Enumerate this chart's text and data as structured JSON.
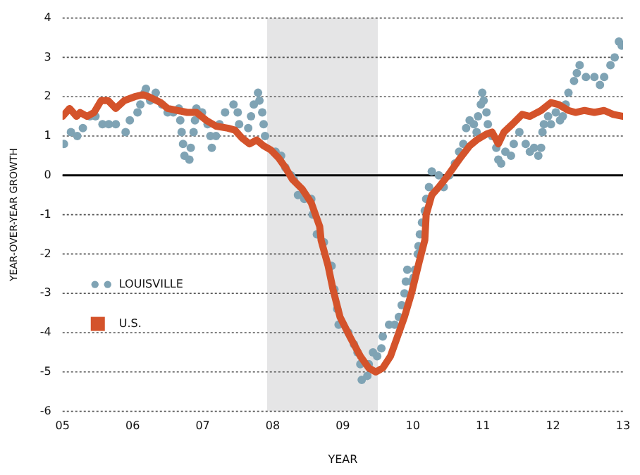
{
  "chart_data": {
    "type": "scatter",
    "xlabel": "YEAR",
    "ylabel": "YEAR-OVER-YEAR GROWTH",
    "xlim": [
      2005,
      2013
    ],
    "xticks": [
      {
        "value": 2005,
        "label": "05"
      },
      {
        "value": 2006,
        "label": "06"
      },
      {
        "value": 2007,
        "label": "07"
      },
      {
        "value": 2008,
        "label": "08"
      },
      {
        "value": 2009,
        "label": "09"
      },
      {
        "value": 2010,
        "label": "10"
      },
      {
        "value": 2011,
        "label": "11"
      },
      {
        "value": 2012,
        "label": "12"
      },
      {
        "value": 2013,
        "label": "13"
      }
    ],
    "ylim": [
      -6,
      4
    ],
    "yticks": [
      -6,
      -5,
      -4,
      -3,
      -2,
      -1,
      0,
      1,
      2,
      3,
      4
    ],
    "grid": "y",
    "legend": "bottom left",
    "bands": [
      {
        "axis": "x",
        "from": 2007.92,
        "to": 2009.5,
        "color": "#e5e5e6"
      }
    ],
    "ref_lines": [
      {
        "axis": "y",
        "value": 0,
        "color": "#000000"
      }
    ],
    "series": [
      {
        "name": "LOUISVILLE",
        "marker": "circle",
        "color": "#7fa3b4",
        "x": [
          2005.02,
          2005.12,
          2005.21,
          2005.29,
          2005.39,
          2005.47,
          2005.57,
          2005.66,
          2005.76,
          2005.9,
          2005.96,
          2006.07,
          2006.11,
          2006.17,
          2006.19,
          2006.25,
          2006.33,
          2006.42,
          2006.5,
          2006.58,
          2006.66,
          2006.68,
          2006.7,
          2006.72,
          2006.74,
          2006.81,
          2006.83,
          2006.87,
          2006.89,
          2006.91,
          2006.99,
          2007.07,
          2007.11,
          2007.13,
          2007.19,
          2007.24,
          2007.32,
          2007.44,
          2007.5,
          2007.52,
          2007.65,
          2007.69,
          2007.73,
          2007.79,
          2007.81,
          2007.85,
          2007.87,
          2007.89,
          2008.04,
          2008.12,
          2008.18,
          2008.26,
          2008.3,
          2008.36,
          2008.45,
          2008.55,
          2008.57,
          2008.63,
          2008.73,
          2008.84,
          2008.88,
          2008.92,
          2008.94,
          2009.08,
          2009.16,
          2009.21,
          2009.25,
          2009.27,
          2009.35,
          2009.37,
          2009.43,
          2009.49,
          2009.55,
          2009.57,
          2009.66,
          2009.74,
          2009.8,
          2009.84,
          2009.88,
          2009.9,
          2009.92,
          2009.98,
          2010.01,
          2010.03,
          2010.07,
          2010.08,
          2010.1,
          2010.13,
          2010.17,
          2010.19,
          2010.23,
          2010.27,
          2010.37,
          2010.44,
          2010.52,
          2010.6,
          2010.66,
          2010.72,
          2010.76,
          2010.81,
          2010.87,
          2010.91,
          2010.93,
          2010.97,
          2010.99,
          2011.01,
          2011.05,
          2011.07,
          2011.13,
          2011.19,
          2011.22,
          2011.26,
          2011.32,
          2011.4,
          2011.44,
          2011.52,
          2011.61,
          2011.67,
          2011.73,
          2011.79,
          2011.83,
          2011.85,
          2011.87,
          2011.93,
          2011.97,
          2012.04,
          2012.1,
          2012.14,
          2012.18,
          2012.22,
          2012.3,
          2012.34,
          2012.38,
          2012.47,
          2012.59,
          2012.67,
          2012.73,
          2012.82,
          2012.88,
          2012.94,
          2012.98
        ],
        "values": [
          0.8,
          1.1,
          1.0,
          1.2,
          1.5,
          1.5,
          1.3,
          1.3,
          1.3,
          1.1,
          1.4,
          1.6,
          1.8,
          2.1,
          2.2,
          1.9,
          2.1,
          1.8,
          1.6,
          1.6,
          1.7,
          1.4,
          1.1,
          0.8,
          0.5,
          0.4,
          0.7,
          1.1,
          1.4,
          1.7,
          1.6,
          1.3,
          1.0,
          0.7,
          1.0,
          1.3,
          1.6,
          1.8,
          1.6,
          1.3,
          1.2,
          1.5,
          1.8,
          2.1,
          1.9,
          1.6,
          1.3,
          1.0,
          0.6,
          0.5,
          0.2,
          0.0,
          -0.1,
          -0.5,
          -0.6,
          -0.6,
          -1.0,
          -1.5,
          -1.7,
          -2.3,
          -2.9,
          -3.4,
          -3.8,
          -4.0,
          -4.3,
          -4.5,
          -4.8,
          -5.2,
          -5.1,
          -4.8,
          -4.5,
          -4.6,
          -4.4,
          -4.1,
          -3.8,
          -3.8,
          -3.6,
          -3.3,
          -3.0,
          -2.7,
          -2.4,
          -2.7,
          -2.6,
          -2.4,
          -2.0,
          -1.8,
          -1.5,
          -1.2,
          -0.9,
          -0.6,
          -0.3,
          0.1,
          0.0,
          -0.3,
          0.0,
          0.3,
          0.6,
          0.8,
          1.2,
          1.4,
          1.3,
          1.1,
          1.5,
          1.8,
          2.1,
          1.9,
          1.6,
          1.3,
          1.0,
          0.7,
          0.4,
          0.3,
          0.6,
          0.5,
          0.8,
          1.1,
          0.8,
          0.6,
          0.7,
          0.5,
          0.7,
          1.1,
          1.3,
          1.5,
          1.3,
          1.6,
          1.4,
          1.5,
          1.8,
          2.1,
          2.4,
          2.6,
          2.8,
          2.5,
          2.5,
          2.3,
          2.5,
          2.8,
          3.0,
          3.4,
          3.3
        ]
      },
      {
        "name": "U.S.",
        "type": "line",
        "marker": "none",
        "color": "#d4532b",
        "x": [
          2005.0,
          2005.1,
          2005.2,
          2005.25,
          2005.35,
          2005.45,
          2005.55,
          2005.65,
          2005.76,
          2005.88,
          2006.03,
          2006.15,
          2006.23,
          2006.4,
          2006.5,
          2006.64,
          2006.78,
          2006.91,
          2007.05,
          2007.19,
          2007.36,
          2007.46,
          2007.56,
          2007.67,
          2007.77,
          2007.87,
          2007.97,
          2008.08,
          2008.18,
          2008.28,
          2008.42,
          2008.55,
          2008.67,
          2008.69,
          2008.79,
          2008.86,
          2008.96,
          2009.1,
          2009.25,
          2009.37,
          2009.47,
          2009.57,
          2009.68,
          2009.78,
          2009.88,
          2009.98,
          2010.09,
          2010.17,
          2010.19,
          2010.27,
          2010.37,
          2010.48,
          2010.58,
          2010.68,
          2010.81,
          2010.91,
          2011.05,
          2011.13,
          2011.22,
          2011.3,
          2011.42,
          2011.56,
          2011.67,
          2011.83,
          2011.97,
          2012.08,
          2012.22,
          2012.32,
          2012.45,
          2012.59,
          2012.73,
          2012.86,
          2013.0
        ],
        "values": [
          1.5,
          1.7,
          1.5,
          1.6,
          1.5,
          1.6,
          1.9,
          1.9,
          1.7,
          1.9,
          2.0,
          2.05,
          2.0,
          1.85,
          1.7,
          1.65,
          1.6,
          1.6,
          1.4,
          1.25,
          1.2,
          1.15,
          0.95,
          0.8,
          0.9,
          0.75,
          0.65,
          0.45,
          0.2,
          -0.1,
          -0.35,
          -0.7,
          -1.3,
          -1.65,
          -2.3,
          -2.9,
          -3.6,
          -4.1,
          -4.6,
          -4.9,
          -5.0,
          -4.9,
          -4.6,
          -4.1,
          -3.6,
          -3.0,
          -2.2,
          -1.65,
          -1.0,
          -0.5,
          -0.3,
          -0.05,
          0.2,
          0.45,
          0.75,
          0.9,
          1.05,
          1.1,
          0.8,
          1.1,
          1.3,
          1.55,
          1.5,
          1.65,
          1.85,
          1.8,
          1.65,
          1.6,
          1.65,
          1.6,
          1.65,
          1.55,
          1.5
        ]
      }
    ]
  }
}
